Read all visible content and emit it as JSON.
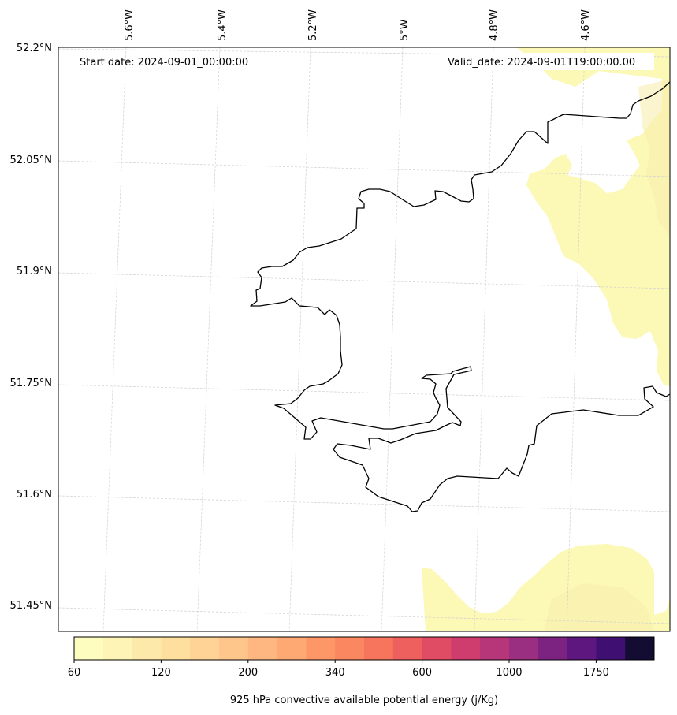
{
  "header": {
    "start_date": "Start date: 2024-09-01_00:00:00",
    "valid_date": "Valid_date: 2024-09-01T19:00:00.00"
  },
  "axes": {
    "lat_labels": [
      "52.2°N",
      "52.05°N",
      "51.9°N",
      "51.75°N",
      "51.6°N",
      "51.45°N"
    ],
    "lon_labels": [
      "5.6°W",
      "5.4°W",
      "5.2°W",
      "5°W",
      "4.8°W",
      "4.6°W"
    ]
  },
  "colorbar": {
    "tick_labels": [
      "60",
      "120",
      "200",
      "340",
      "600",
      "1000",
      "1750"
    ],
    "label": "925 hPa convective available potential energy (j/Kg)",
    "colors": [
      "#fcfdbf",
      "#fdf4b5",
      "#fde9a9",
      "#fedf9e",
      "#fed395",
      "#fec68b",
      "#feb780",
      "#fea873",
      "#fd9768",
      "#fb8761",
      "#f7755c",
      "#ee605e",
      "#e04c63",
      "#ce3d6e",
      "#b53679",
      "#9a2e80",
      "#7c2382",
      "#5e177f",
      "#3f0f72"
    ],
    "last_color": "#130d34"
  },
  "map": {
    "cape_fill_color": "#fcf8b6",
    "cape_fill_dark": "#f7eeae",
    "coastline_color": "#000000",
    "grid_color": "#d0d0d0"
  }
}
